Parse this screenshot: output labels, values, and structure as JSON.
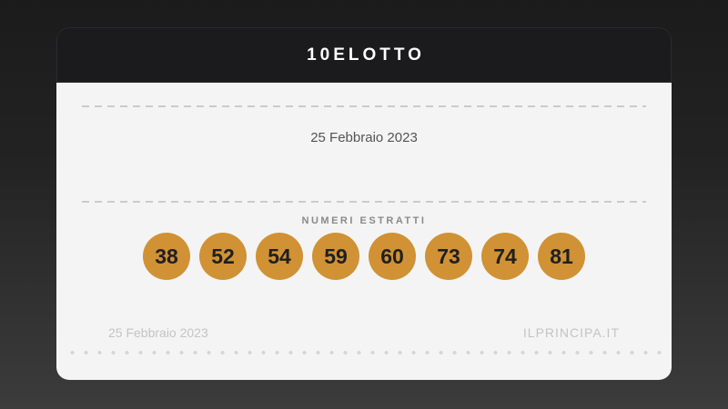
{
  "page": {
    "background_top_color": "#1b1b1b",
    "background_bottom_color": "#3c3c3c"
  },
  "card": {
    "title": "10ELOTTO",
    "draw_date": "25 Febbraio 2023",
    "numbers_label": "NUMERI ESTRATTI",
    "numbers": [
      "38",
      "52",
      "54",
      "59",
      "60",
      "73",
      "74",
      "81"
    ],
    "footer": {
      "date": "25 Febbraio 2023",
      "site": "ILPRINCIPA.IT"
    },
    "colors": {
      "header_bg": "#1b1b1d",
      "title_text": "#fefefe",
      "body_bg": "#f4f4f4",
      "ball_bg": "#d09235",
      "ball_text": "#1f1f1f",
      "date_text": "#545454",
      "label_text": "#8a8a8a",
      "footer_text": "#c4c4c4",
      "divider": "#cbcbcb"
    }
  }
}
